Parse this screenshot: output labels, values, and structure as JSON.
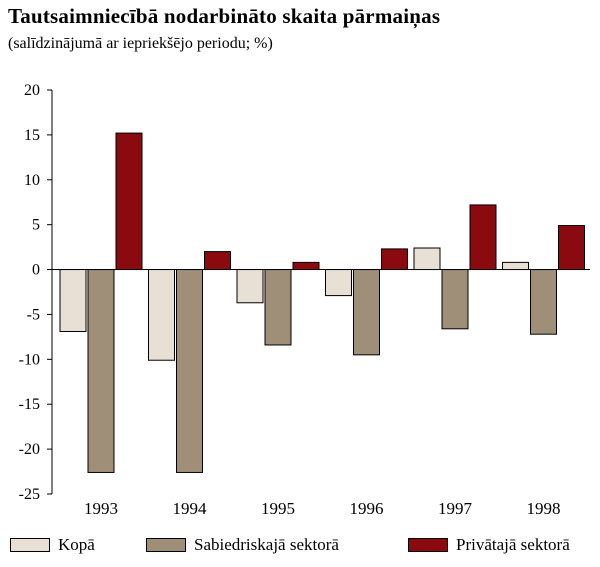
{
  "title": "Tautsaimniecībā nodarbināto skaita pārmaiņas",
  "subtitle": "(salīdzinājumā ar iepriekšējo periodu; %)",
  "chart_data": {
    "type": "bar",
    "categories": [
      "1993",
      "1994",
      "1995",
      "1996",
      "1997",
      "1998"
    ],
    "series": [
      {
        "name": "Kopā",
        "color": "#e8e0d4",
        "values": [
          -6.9,
          -10.1,
          -3.7,
          -2.9,
          2.4,
          0.8
        ]
      },
      {
        "name": "Sabiedriskajā sektorā",
        "color": "#a08f78",
        "values": [
          -22.6,
          -22.6,
          -8.4,
          -9.5,
          -6.6,
          -7.2
        ]
      },
      {
        "name": "Privātajā sektorā",
        "color": "#8b0a10",
        "values": [
          15.2,
          2.0,
          0.8,
          2.3,
          7.2,
          4.9
        ]
      }
    ],
    "yticks": [
      "20",
      "15",
      "10",
      "5",
      "0",
      "-5",
      "-10",
      "-15",
      "-20",
      "-25"
    ],
    "ylim": [
      -25,
      20
    ],
    "grid": false,
    "legend_position": "bottom"
  }
}
